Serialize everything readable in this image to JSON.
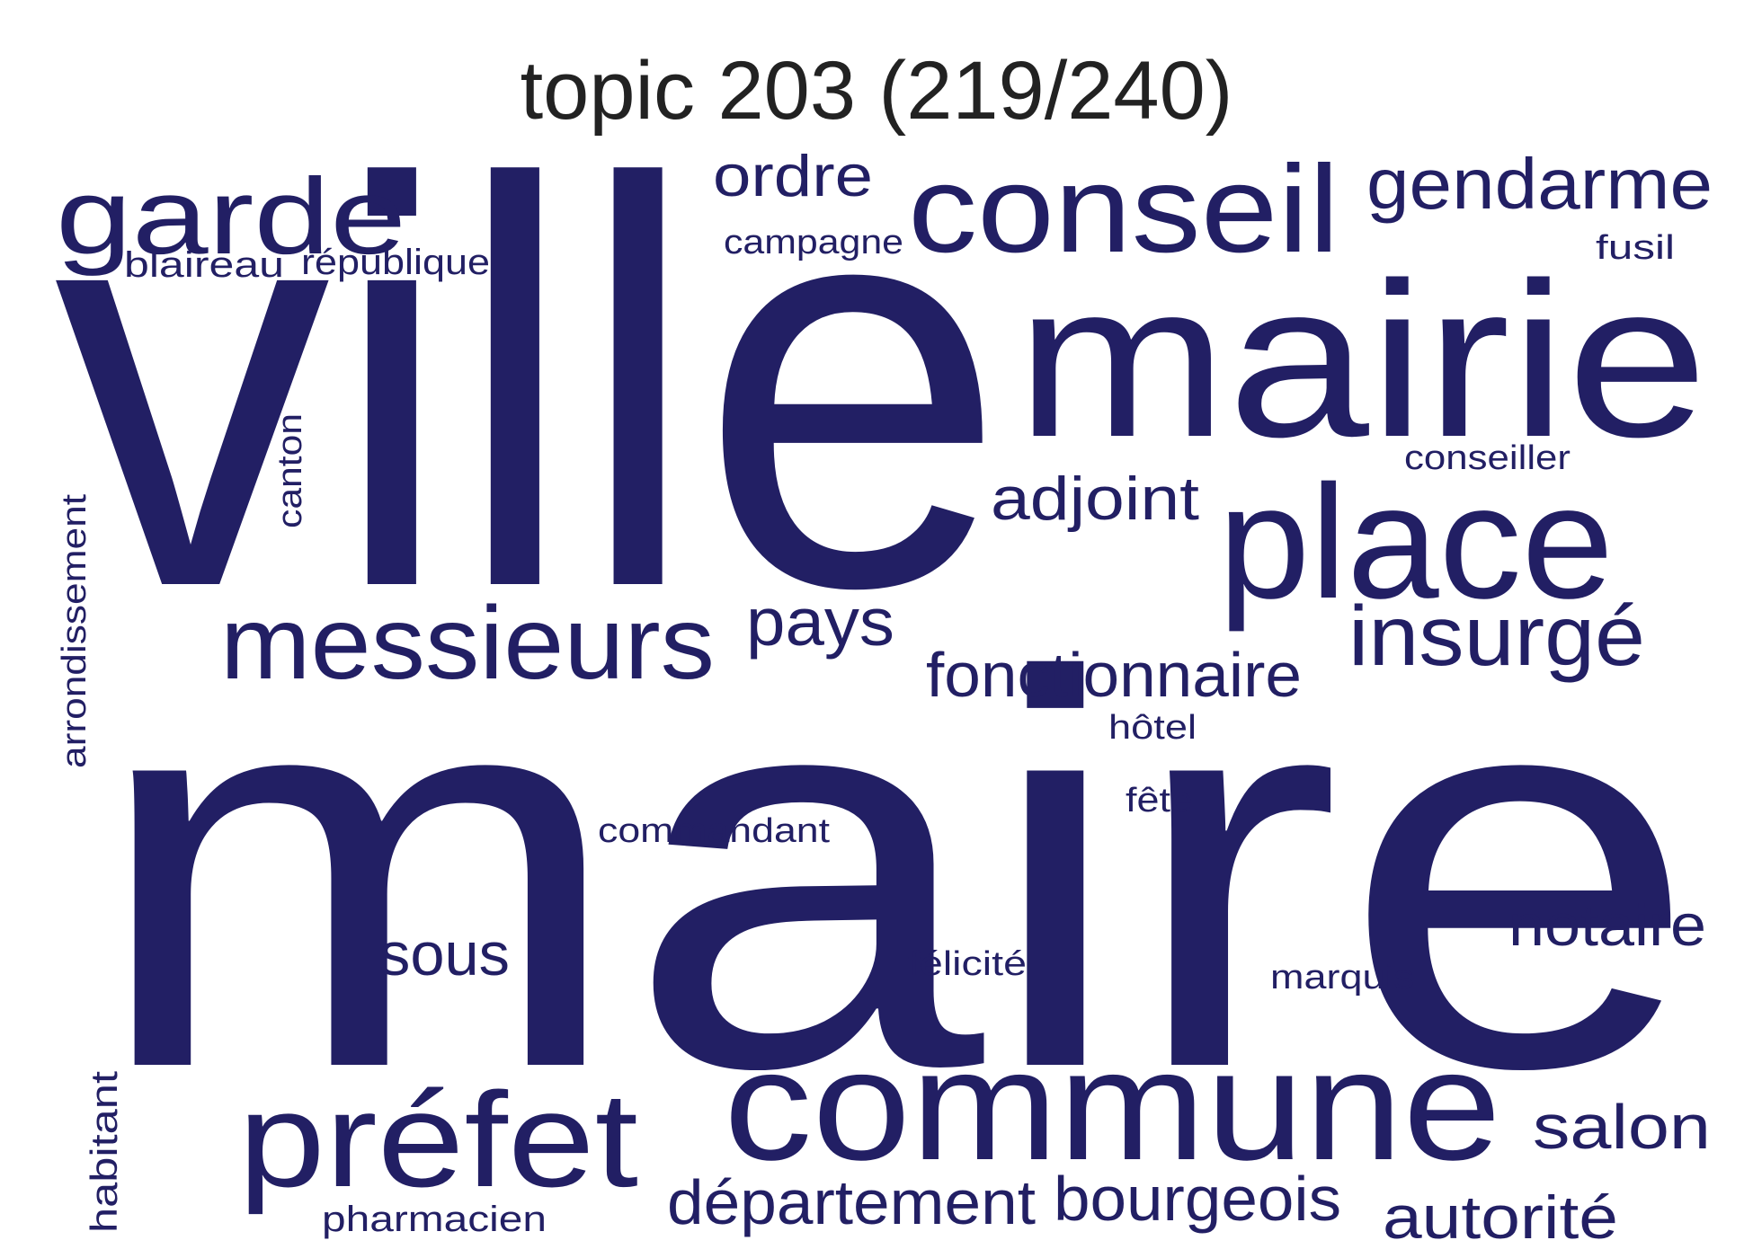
{
  "title": "topic 203 (219/240)",
  "colors": {
    "word": "#221f64",
    "title": "#222222",
    "background": "#ffffff"
  },
  "words": [
    {
      "key": "maire",
      "text": "maire"
    },
    {
      "key": "ville",
      "text": "ville"
    },
    {
      "key": "mairie",
      "text": "mairie"
    },
    {
      "key": "commune",
      "text": "commune"
    },
    {
      "key": "place",
      "text": "place"
    },
    {
      "key": "conseil",
      "text": "conseil"
    },
    {
      "key": "prefet",
      "text": "préfet"
    },
    {
      "key": "messieurs",
      "text": "messieurs"
    },
    {
      "key": "garde",
      "text": "garde"
    },
    {
      "key": "gendarme",
      "text": "gendarme"
    },
    {
      "key": "insurge",
      "text": "insurgé"
    },
    {
      "key": "departement",
      "text": "département"
    },
    {
      "key": "bourgeois",
      "text": "bourgeois"
    },
    {
      "key": "fonctionnaire",
      "text": "fonctionnaire"
    },
    {
      "key": "adjoint",
      "text": "adjoint"
    },
    {
      "key": "autorite",
      "text": "autorité"
    },
    {
      "key": "salon",
      "text": "salon"
    },
    {
      "key": "notaire",
      "text": "notaire"
    },
    {
      "key": "pays",
      "text": "pays"
    },
    {
      "key": "ordre",
      "text": "ordre"
    },
    {
      "key": "sous",
      "text": "sous"
    },
    {
      "key": "republique",
      "text": "république"
    },
    {
      "key": "blaireau",
      "text": "blaireau"
    },
    {
      "key": "campagne",
      "text": "campagne"
    },
    {
      "key": "fusil",
      "text": "fusil"
    },
    {
      "key": "conseiller",
      "text": "conseiller"
    },
    {
      "key": "commandant",
      "text": "commandant"
    },
    {
      "key": "pharmacien",
      "text": "pharmacien"
    },
    {
      "key": "hotel",
      "text": "hôtel"
    },
    {
      "key": "fete",
      "text": "fête"
    },
    {
      "key": "felicite",
      "text": "félicité"
    },
    {
      "key": "marquis",
      "text": "marquis"
    },
    {
      "key": "canton",
      "text": "canton"
    },
    {
      "key": "arrondissement",
      "text": "arrondissement"
    },
    {
      "key": "habitant",
      "text": "habitant"
    }
  ]
}
